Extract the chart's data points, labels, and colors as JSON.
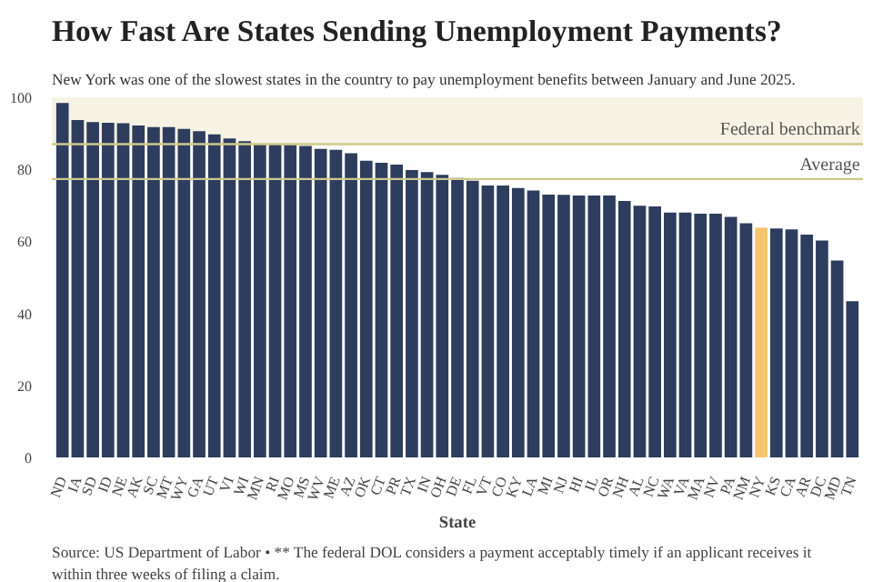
{
  "chart_data": {
    "type": "bar",
    "title": "How Fast Are States Sending Unemployment Payments?",
    "subtitle": "New York was one of the slowest states in the country to pay unemployment benefits between January and June 2025.",
    "xlabel": "State",
    "categories": [
      "ND",
      "IA",
      "SD",
      "ID",
      "NE",
      "AK",
      "SC",
      "MT",
      "WY",
      "GA",
      "UT",
      "VI",
      "WI",
      "MN",
      "RI",
      "MO",
      "MS",
      "WV",
      "ME",
      "AZ",
      "OK",
      "CT",
      "PR",
      "TX",
      "IN",
      "OH",
      "DE",
      "FL",
      "VT",
      "CO",
      "KY",
      "LA",
      "MI",
      "NJ",
      "HI",
      "IL",
      "OR",
      "NH",
      "AL",
      "NC",
      "WA",
      "VA",
      "MA",
      "NV",
      "PA",
      "NM",
      "NY",
      "KS",
      "CA",
      "AR",
      "DC",
      "MD",
      "TN"
    ],
    "values": [
      98.4,
      93.7,
      93.1,
      92.9,
      92.8,
      92.2,
      91.7,
      91.7,
      91.2,
      90.6,
      89.7,
      88.6,
      87.8,
      87.0,
      87.0,
      86.8,
      86.5,
      85.7,
      85.4,
      84.5,
      82.4,
      81.8,
      81.3,
      79.8,
      79.2,
      78.5,
      77.6,
      76.8,
      75.5,
      75.5,
      74.8,
      74.1,
      73.0,
      72.9,
      72.7,
      72.7,
      72.7,
      71.2,
      69.9,
      69.7,
      68.0,
      68.0,
      67.7,
      67.7,
      66.8,
      65.0,
      63.8,
      63.6,
      63.3,
      61.9,
      60.2,
      54.7,
      43.4
    ],
    "colors": [
      "#2e3d5e",
      "#2e3d5e",
      "#2e3d5e",
      "#2e3d5e",
      "#2e3d5e",
      "#2e3d5e",
      "#2e3d5e",
      "#2e3d5e",
      "#2e3d5e",
      "#2e3d5e",
      "#2e3d5e",
      "#2e3d5e",
      "#2e3d5e",
      "#2e3d5e",
      "#2e3d5e",
      "#2e3d5e",
      "#2e3d5e",
      "#2e3d5e",
      "#2e3d5e",
      "#2e3d5e",
      "#2e3d5e",
      "#2e3d5e",
      "#2e3d5e",
      "#2e3d5e",
      "#2e3d5e",
      "#2e3d5e",
      "#2e3d5e",
      "#2e3d5e",
      "#2e3d5e",
      "#2e3d5e",
      "#2e3d5e",
      "#2e3d5e",
      "#2e3d5e",
      "#2e3d5e",
      "#2e3d5e",
      "#2e3d5e",
      "#2e3d5e",
      "#2e3d5e",
      "#2e3d5e",
      "#2e3d5e",
      "#2e3d5e",
      "#2e3d5e",
      "#2e3d5e",
      "#2e3d5e",
      "#2e3d5e",
      "#2e3d5e",
      "#f5c56e",
      "#2e3d5e",
      "#2e3d5e",
      "#2e3d5e",
      "#2e3d5e",
      "#2e3d5e",
      "#2e3d5e"
    ],
    "ylim": [
      0,
      100
    ],
    "yticks": [
      0,
      20,
      40,
      60,
      80,
      100
    ],
    "grid": false,
    "ref_lines": [
      {
        "axis": "y",
        "value": 87,
        "label": "Federal benchmark",
        "color": "#cfc98a"
      },
      {
        "axis": "y",
        "value": 77.3,
        "label": "Average",
        "color": "#cfc98a"
      }
    ],
    "bands": [
      {
        "axis": "y",
        "from": 87,
        "to": 100,
        "color": "#f7f3e4"
      }
    ],
    "annotations": [
      "Source: US Department of Labor • ** The federal DOL considers a payment acceptably timely if an applicant receives it within three weeks of filing a claim."
    ]
  }
}
